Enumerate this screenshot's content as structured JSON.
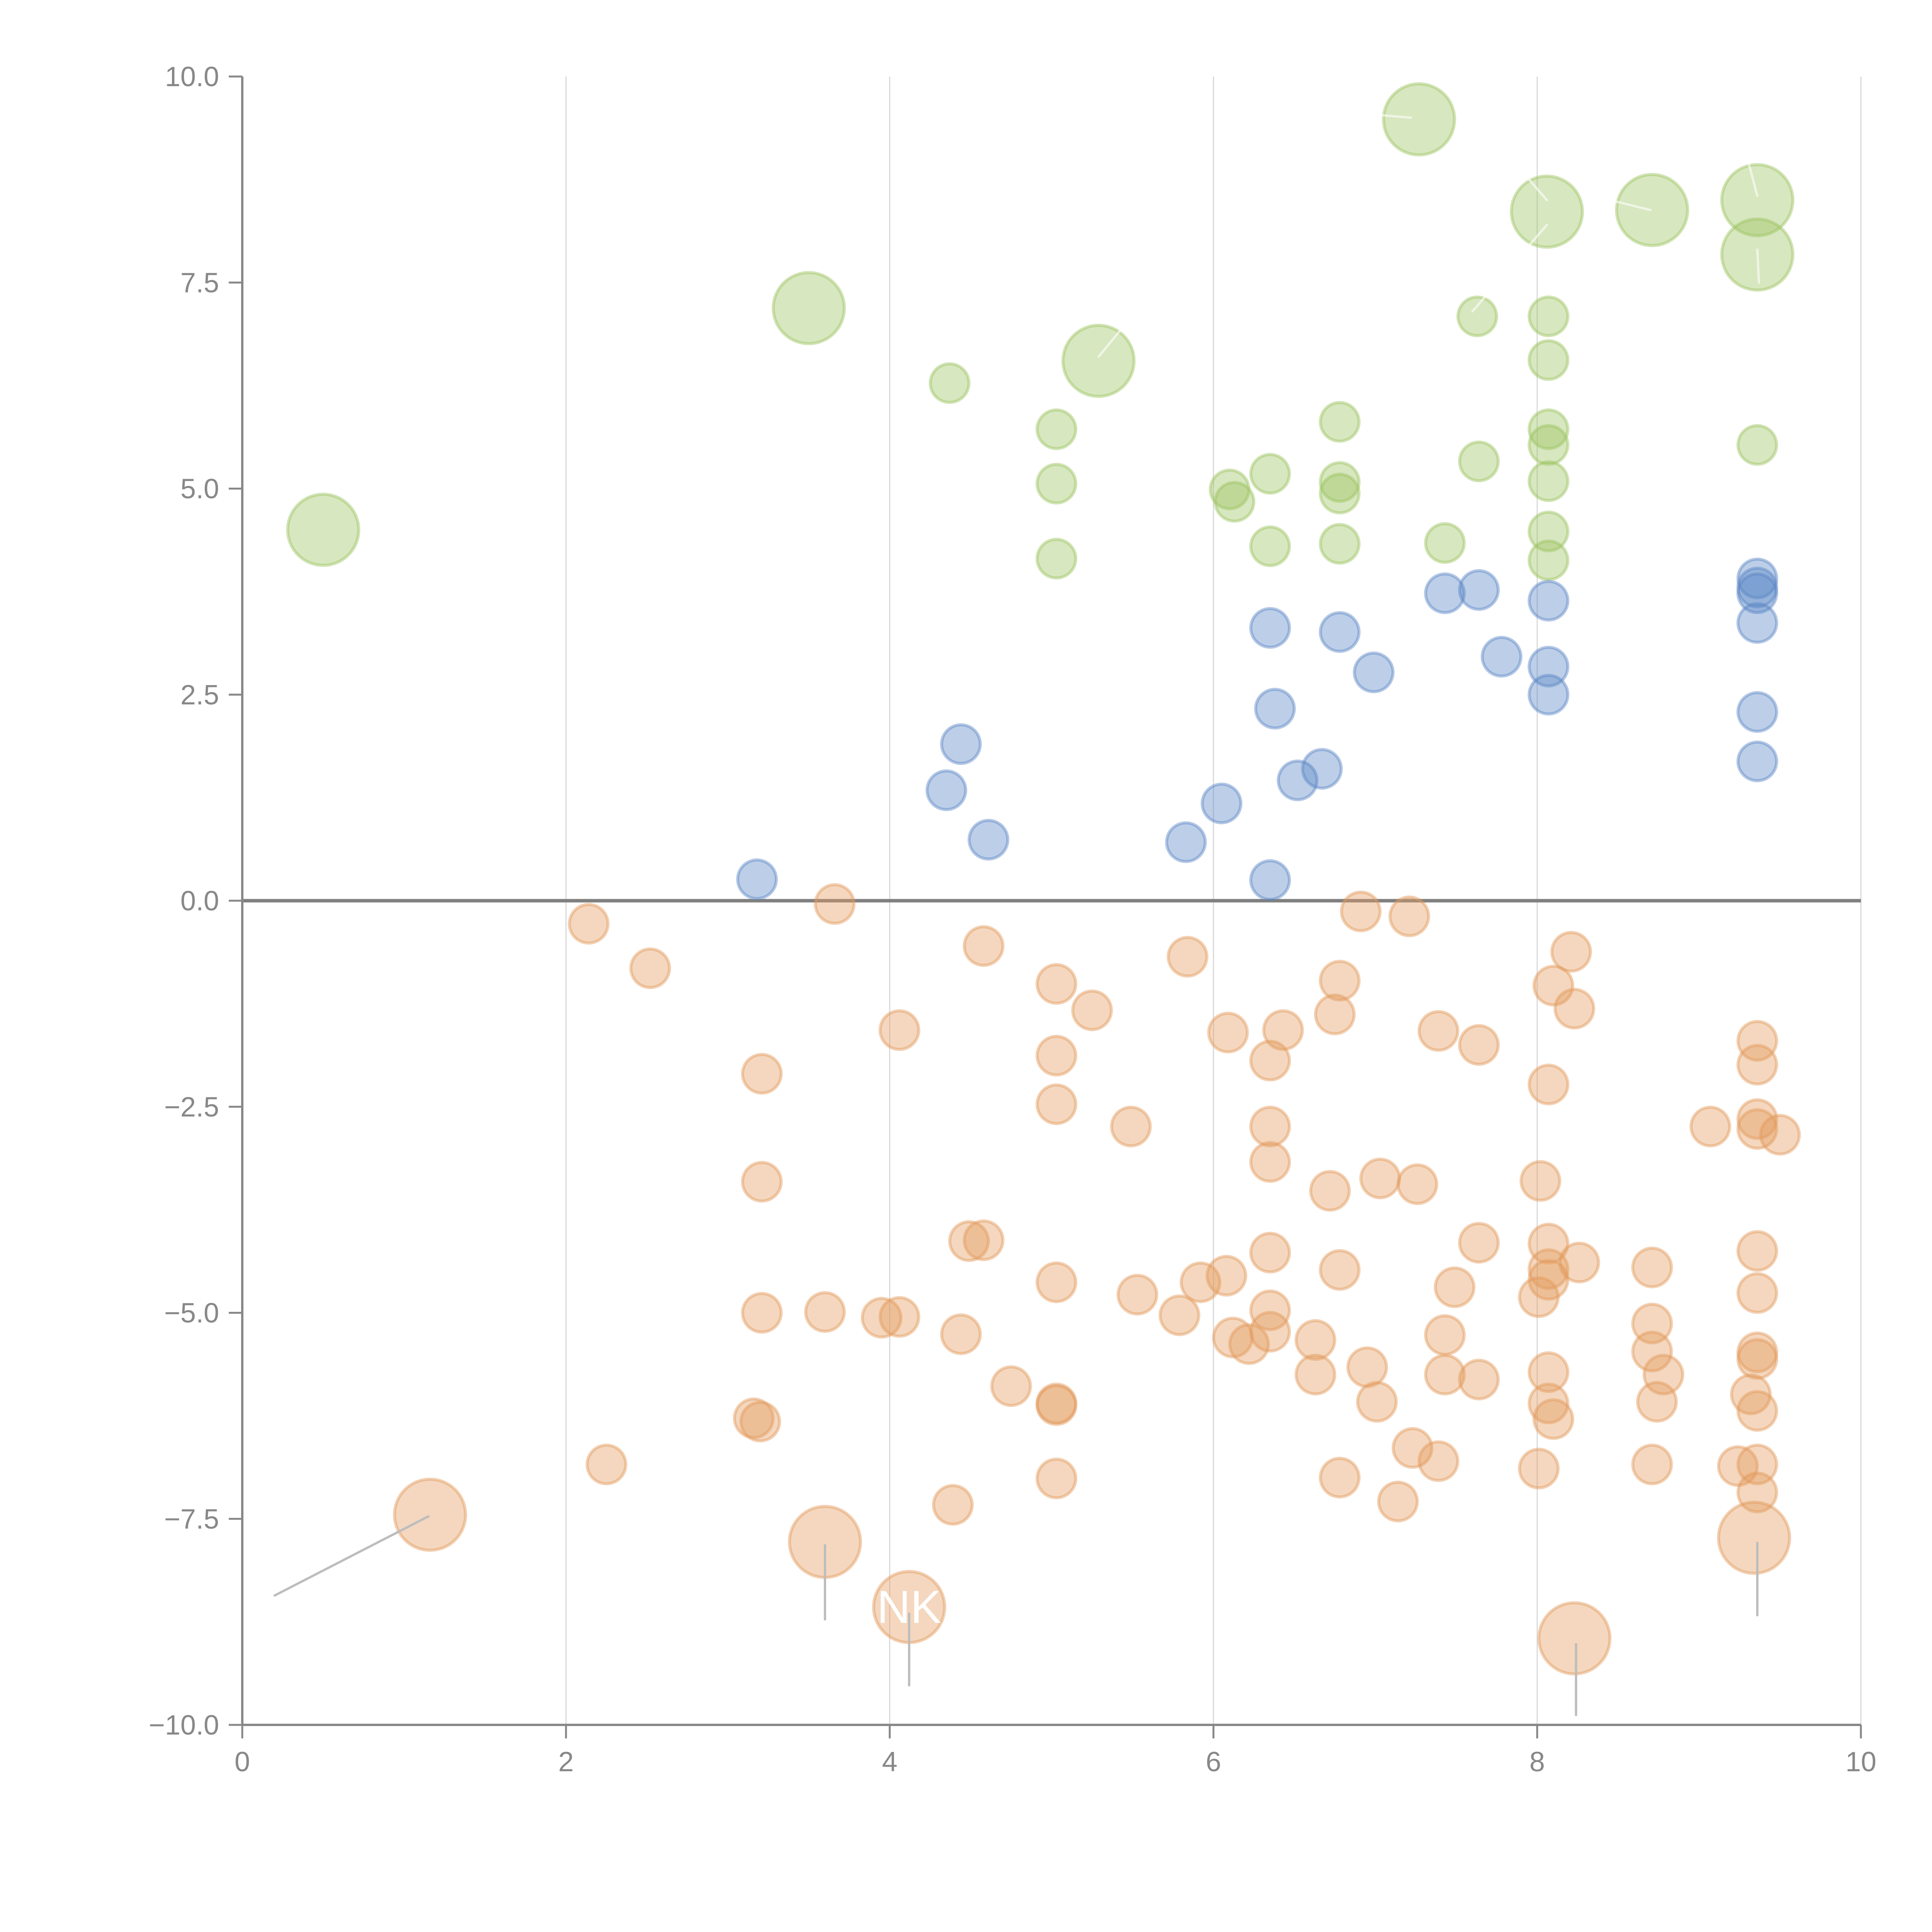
{
  "chart_data": {
    "type": "scatter",
    "title": "",
    "xlabel": "",
    "ylabel": "",
    "xlim": [
      0,
      10
    ],
    "ylim": [
      -10,
      10
    ],
    "x_ticks": [
      "0",
      "2",
      "4",
      "6",
      "8",
      "10"
    ],
    "x_tick_values": [
      0,
      2,
      4,
      6,
      8,
      10
    ],
    "y_ticks": [
      "10.0",
      "7.5",
      "5.0",
      "2.5",
      "0.0",
      "−2.5",
      "−5.0",
      "−7.5",
      "−10.0"
    ],
    "y_tick_values": [
      10,
      7.5,
      5,
      2.5,
      0,
      -2.5,
      -5,
      -7.5,
      -10
    ],
    "grid": "vertical",
    "reference_line_y": 0,
    "legend": "none",
    "series": [
      {
        "name": "green",
        "color": "#9cc35f",
        "points": [
          {
            "x": 0.5,
            "y": 4.5,
            "size": "large"
          },
          {
            "x": 3.5,
            "y": 7.19,
            "size": "large"
          },
          {
            "x": 5.29,
            "y": 6.55,
            "size": "large"
          },
          {
            "x": 7.27,
            "y": 9.48,
            "size": "large"
          },
          {
            "x": 8.06,
            "y": 8.36,
            "size": "large"
          },
          {
            "x": 8.71,
            "y": 8.38,
            "size": "large"
          },
          {
            "x": 9.36,
            "y": 8.5,
            "size": "large"
          },
          {
            "x": 9.36,
            "y": 7.84,
            "size": "large"
          },
          {
            "x": 4.37,
            "y": 6.28,
            "size": "small"
          },
          {
            "x": 5.03,
            "y": 5.72,
            "size": "small"
          },
          {
            "x": 5.03,
            "y": 5.06,
            "size": "small"
          },
          {
            "x": 5.03,
            "y": 4.15,
            "size": "small"
          },
          {
            "x": 6.1,
            "y": 4.99,
            "size": "small"
          },
          {
            "x": 6.13,
            "y": 4.84,
            "size": "small"
          },
          {
            "x": 6.35,
            "y": 5.18,
            "size": "small"
          },
          {
            "x": 6.35,
            "y": 4.3,
            "size": "small"
          },
          {
            "x": 6.78,
            "y": 5.81,
            "size": "small"
          },
          {
            "x": 6.78,
            "y": 5.08,
            "size": "small"
          },
          {
            "x": 6.78,
            "y": 4.94,
            "size": "small"
          },
          {
            "x": 6.78,
            "y": 4.33,
            "size": "small"
          },
          {
            "x": 7.43,
            "y": 4.34,
            "size": "small"
          },
          {
            "x": 7.64,
            "y": 5.33,
            "size": "small"
          },
          {
            "x": 7.63,
            "y": 7.09,
            "size": "small"
          },
          {
            "x": 8.07,
            "y": 7.09,
            "size": "small"
          },
          {
            "x": 8.07,
            "y": 6.56,
            "size": "small"
          },
          {
            "x": 8.07,
            "y": 5.72,
            "size": "small"
          },
          {
            "x": 8.07,
            "y": 5.53,
            "size": "small"
          },
          {
            "x": 8.07,
            "y": 5.09,
            "size": "small"
          },
          {
            "x": 8.07,
            "y": 4.48,
            "size": "small"
          },
          {
            "x": 8.07,
            "y": 4.13,
            "size": "small"
          },
          {
            "x": 9.36,
            "y": 5.53,
            "size": "small"
          }
        ]
      },
      {
        "name": "blue",
        "color": "#5b86c6",
        "points": [
          {
            "x": 3.18,
            "y": 0.26,
            "size": "small"
          },
          {
            "x": 4.35,
            "y": 1.34,
            "size": "small"
          },
          {
            "x": 4.44,
            "y": 1.9,
            "size": "small"
          },
          {
            "x": 4.61,
            "y": 0.74,
            "size": "small"
          },
          {
            "x": 5.83,
            "y": 0.71,
            "size": "small"
          },
          {
            "x": 6.05,
            "y": 1.18,
            "size": "small"
          },
          {
            "x": 6.35,
            "y": 3.31,
            "size": "small"
          },
          {
            "x": 6.38,
            "y": 2.33,
            "size": "small"
          },
          {
            "x": 6.35,
            "y": 0.25,
            "size": "small"
          },
          {
            "x": 6.52,
            "y": 1.46,
            "size": "small"
          },
          {
            "x": 6.67,
            "y": 1.6,
            "size": "small"
          },
          {
            "x": 6.78,
            "y": 3.26,
            "size": "small"
          },
          {
            "x": 6.99,
            "y": 2.77,
            "size": "small"
          },
          {
            "x": 7.43,
            "y": 3.73,
            "size": "small"
          },
          {
            "x": 7.64,
            "y": 3.77,
            "size": "small"
          },
          {
            "x": 7.78,
            "y": 2.96,
            "size": "small"
          },
          {
            "x": 8.07,
            "y": 3.64,
            "size": "small"
          },
          {
            "x": 8.07,
            "y": 2.84,
            "size": "small"
          },
          {
            "x": 8.07,
            "y": 2.5,
            "size": "small"
          },
          {
            "x": 9.36,
            "y": 3.91,
            "size": "small"
          },
          {
            "x": 9.36,
            "y": 3.8,
            "size": "small"
          },
          {
            "x": 9.36,
            "y": 3.73,
            "size": "small"
          },
          {
            "x": 9.36,
            "y": 3.37,
            "size": "small"
          },
          {
            "x": 9.36,
            "y": 2.29,
            "size": "small"
          },
          {
            "x": 9.36,
            "y": 1.69,
            "size": "small"
          }
        ]
      },
      {
        "name": "orange",
        "color": "#e39a5c",
        "points": [
          {
            "x": 1.16,
            "y": -7.45,
            "size": "large"
          },
          {
            "x": 3.6,
            "y": -7.78,
            "size": "large"
          },
          {
            "x": 4.12,
            "y": -8.57,
            "size": "large",
            "label": "NK"
          },
          {
            "x": 8.23,
            "y": -8.95,
            "size": "large"
          },
          {
            "x": 9.34,
            "y": -7.73,
            "size": "large"
          },
          {
            "x": 2.14,
            "y": -0.28,
            "size": "small"
          },
          {
            "x": 2.52,
            "y": -0.82,
            "size": "small"
          },
          {
            "x": 3.66,
            "y": -0.04,
            "size": "small"
          },
          {
            "x": 3.21,
            "y": -2.1,
            "size": "small"
          },
          {
            "x": 3.21,
            "y": -3.41,
            "size": "small"
          },
          {
            "x": 3.21,
            "y": -5.0,
            "size": "small"
          },
          {
            "x": 3.16,
            "y": -6.28,
            "size": "small"
          },
          {
            "x": 3.2,
            "y": -6.32,
            "size": "small"
          },
          {
            "x": 2.25,
            "y": -6.84,
            "size": "small"
          },
          {
            "x": 3.6,
            "y": -4.99,
            "size": "small"
          },
          {
            "x": 3.95,
            "y": -5.06,
            "size": "small"
          },
          {
            "x": 4.06,
            "y": -5.05,
            "size": "small"
          },
          {
            "x": 4.06,
            "y": -1.57,
            "size": "small"
          },
          {
            "x": 4.58,
            "y": -0.55,
            "size": "small"
          },
          {
            "x": 4.44,
            "y": -5.26,
            "size": "small"
          },
          {
            "x": 4.49,
            "y": -4.13,
            "size": "small"
          },
          {
            "x": 4.58,
            "y": -4.12,
            "size": "small"
          },
          {
            "x": 4.75,
            "y": -5.89,
            "size": "small"
          },
          {
            "x": 4.39,
            "y": -7.33,
            "size": "small"
          },
          {
            "x": 5.03,
            "y": -1.01,
            "size": "small"
          },
          {
            "x": 5.03,
            "y": -1.88,
            "size": "small"
          },
          {
            "x": 5.03,
            "y": -2.47,
            "size": "small"
          },
          {
            "x": 5.03,
            "y": -4.63,
            "size": "small"
          },
          {
            "x": 5.03,
            "y": -6.1,
            "size": "small"
          },
          {
            "x": 5.03,
            "y": -6.12,
            "size": "small"
          },
          {
            "x": 5.03,
            "y": -7.01,
            "size": "small"
          },
          {
            "x": 5.25,
            "y": -1.33,
            "size": "small"
          },
          {
            "x": 5.49,
            "y": -2.74,
            "size": "small"
          },
          {
            "x": 5.53,
            "y": -4.78,
            "size": "small"
          },
          {
            "x": 5.79,
            "y": -5.03,
            "size": "small"
          },
          {
            "x": 5.84,
            "y": -0.68,
            "size": "small"
          },
          {
            "x": 5.92,
            "y": -4.63,
            "size": "small"
          },
          {
            "x": 6.09,
            "y": -1.6,
            "size": "small"
          },
          {
            "x": 6.08,
            "y": -4.55,
            "size": "small"
          },
          {
            "x": 6.12,
            "y": -5.3,
            "size": "small"
          },
          {
            "x": 6.22,
            "y": -5.38,
            "size": "small"
          },
          {
            "x": 6.35,
            "y": -1.94,
            "size": "small"
          },
          {
            "x": 6.35,
            "y": -2.74,
            "size": "small"
          },
          {
            "x": 6.35,
            "y": -3.17,
            "size": "small"
          },
          {
            "x": 6.35,
            "y": -4.27,
            "size": "small"
          },
          {
            "x": 6.35,
            "y": -4.97,
            "size": "small"
          },
          {
            "x": 6.35,
            "y": -5.23,
            "size": "small"
          },
          {
            "x": 6.43,
            "y": -1.57,
            "size": "small"
          },
          {
            "x": 6.63,
            "y": -5.33,
            "size": "small"
          },
          {
            "x": 6.63,
            "y": -5.75,
            "size": "small"
          },
          {
            "x": 6.72,
            "y": -3.52,
            "size": "small"
          },
          {
            "x": 6.78,
            "y": -0.97,
            "size": "small"
          },
          {
            "x": 6.75,
            "y": -1.38,
            "size": "small"
          },
          {
            "x": 6.78,
            "y": -4.48,
            "size": "small"
          },
          {
            "x": 6.78,
            "y": -7.0,
            "size": "small"
          },
          {
            "x": 6.91,
            "y": -0.13,
            "size": "small"
          },
          {
            "x": 6.95,
            "y": -5.66,
            "size": "small"
          },
          {
            "x": 7.01,
            "y": -6.08,
            "size": "small"
          },
          {
            "x": 7.03,
            "y": -3.37,
            "size": "small"
          },
          {
            "x": 7.14,
            "y": -7.29,
            "size": "small"
          },
          {
            "x": 7.21,
            "y": -0.19,
            "size": "small"
          },
          {
            "x": 7.23,
            "y": -6.64,
            "size": "small"
          },
          {
            "x": 7.26,
            "y": -3.44,
            "size": "small"
          },
          {
            "x": 7.39,
            "y": -1.58,
            "size": "small"
          },
          {
            "x": 7.39,
            "y": -6.8,
            "size": "small"
          },
          {
            "x": 7.43,
            "y": -5.27,
            "size": "small"
          },
          {
            "x": 7.43,
            "y": -5.75,
            "size": "small"
          },
          {
            "x": 7.49,
            "y": -4.69,
            "size": "small"
          },
          {
            "x": 7.64,
            "y": -1.75,
            "size": "small"
          },
          {
            "x": 7.64,
            "y": -4.15,
            "size": "small"
          },
          {
            "x": 7.64,
            "y": -5.81,
            "size": "small"
          },
          {
            "x": 8.02,
            "y": -3.4,
            "size": "small"
          },
          {
            "x": 8.01,
            "y": -4.81,
            "size": "small"
          },
          {
            "x": 8.01,
            "y": -6.89,
            "size": "small"
          },
          {
            "x": 8.07,
            "y": -2.23,
            "size": "small"
          },
          {
            "x": 8.07,
            "y": -4.16,
            "size": "small"
          },
          {
            "x": 8.07,
            "y": -4.47,
            "size": "small"
          },
          {
            "x": 8.07,
            "y": -4.6,
            "size": "small"
          },
          {
            "x": 8.07,
            "y": -5.72,
            "size": "small"
          },
          {
            "x": 8.07,
            "y": -6.1,
            "size": "small"
          },
          {
            "x": 8.1,
            "y": -6.29,
            "size": "small"
          },
          {
            "x": 8.1,
            "y": -1.03,
            "size": "small"
          },
          {
            "x": 8.21,
            "y": -0.62,
            "size": "small"
          },
          {
            "x": 8.23,
            "y": -1.31,
            "size": "small"
          },
          {
            "x": 8.26,
            "y": -4.39,
            "size": "small"
          },
          {
            "x": 8.71,
            "y": -4.45,
            "size": "small"
          },
          {
            "x": 8.71,
            "y": -5.13,
            "size": "small"
          },
          {
            "x": 8.71,
            "y": -5.47,
            "size": "small"
          },
          {
            "x": 8.78,
            "y": -5.75,
            "size": "small"
          },
          {
            "x": 8.74,
            "y": -6.08,
            "size": "small"
          },
          {
            "x": 8.71,
            "y": -6.84,
            "size": "small"
          },
          {
            "x": 9.07,
            "y": -2.74,
            "size": "small"
          },
          {
            "x": 9.24,
            "y": -6.86,
            "size": "small"
          },
          {
            "x": 9.32,
            "y": -5.99,
            "size": "small"
          },
          {
            "x": 9.36,
            "y": -1.7,
            "size": "small"
          },
          {
            "x": 9.36,
            "y": -1.99,
            "size": "small"
          },
          {
            "x": 9.36,
            "y": -2.65,
            "size": "small"
          },
          {
            "x": 9.36,
            "y": -2.77,
            "size": "small"
          },
          {
            "x": 9.5,
            "y": -2.84,
            "size": "small"
          },
          {
            "x": 9.36,
            "y": -4.25,
            "size": "small"
          },
          {
            "x": 9.36,
            "y": -4.76,
            "size": "small"
          },
          {
            "x": 9.36,
            "y": -5.48,
            "size": "small"
          },
          {
            "x": 9.36,
            "y": -5.56,
            "size": "small"
          },
          {
            "x": 9.36,
            "y": -6.19,
            "size": "small"
          },
          {
            "x": 9.36,
            "y": -6.84,
            "size": "small"
          },
          {
            "x": 9.36,
            "y": -7.18,
            "size": "small"
          }
        ]
      }
    ],
    "annotations": [
      {
        "text": "NK",
        "x": 4.12,
        "y": -8.57
      }
    ],
    "leader_lines": [
      {
        "from": [
          1.15,
          -7.47
        ],
        "to": [
          0.2,
          -8.43
        ],
        "tone": "gray"
      },
      {
        "from": [
          3.6,
          -7.82
        ],
        "to": [
          3.6,
          -8.72
        ],
        "tone": "gray"
      },
      {
        "from": [
          4.12,
          -8.65
        ],
        "to": [
          4.12,
          -9.52
        ],
        "tone": "gray"
      },
      {
        "from": [
          8.24,
          -9.02
        ],
        "to": [
          8.24,
          -9.88
        ],
        "tone": "gray"
      },
      {
        "from": [
          9.36,
          -7.79
        ],
        "to": [
          9.36,
          -8.67
        ],
        "tone": "gray"
      },
      {
        "from": [
          7.22,
          9.5
        ],
        "to": [
          6.8,
          9.57
        ],
        "tone": "light"
      },
      {
        "from": [
          5.29,
          6.6
        ],
        "to": [
          5.5,
          7.1
        ],
        "tone": "light"
      },
      {
        "from": [
          8.06,
          8.2
        ],
        "to": [
          7.6,
          7.15
        ],
        "tone": "light"
      },
      {
        "from": [
          8.06,
          8.5
        ],
        "to": [
          7.95,
          8.75
        ],
        "tone": "light"
      },
      {
        "from": [
          8.7,
          8.38
        ],
        "to": [
          8.35,
          8.55
        ],
        "tone": "light"
      },
      {
        "from": [
          9.36,
          8.55
        ],
        "to": [
          9.3,
          9.0
        ],
        "tone": "light"
      },
      {
        "from": [
          9.37,
          7.5
        ],
        "to": [
          9.36,
          7.9
        ],
        "tone": "light"
      }
    ]
  }
}
